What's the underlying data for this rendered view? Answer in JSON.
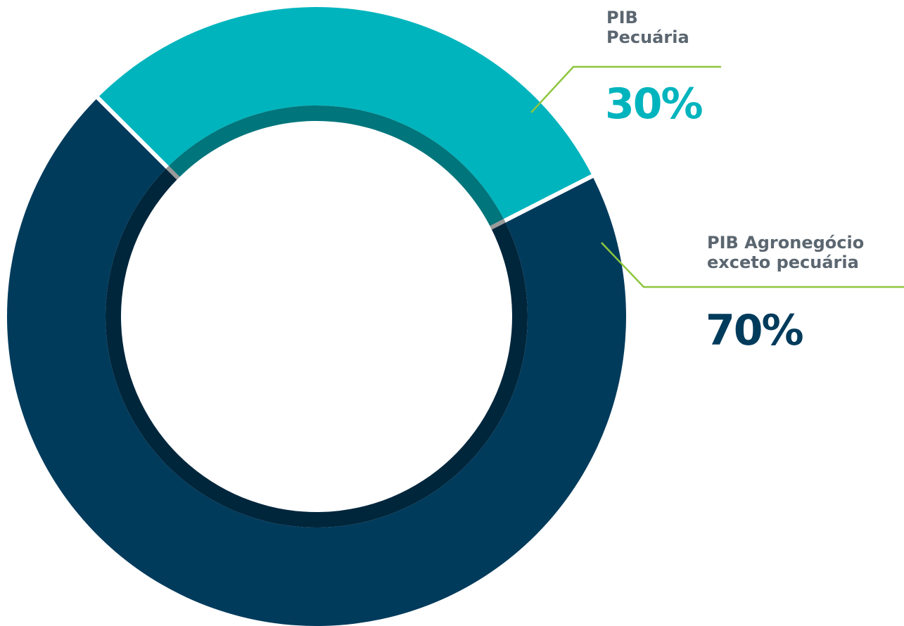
{
  "chart_data": {
    "type": "donut",
    "categories": [
      "PIB Pecuária",
      "PIB Agronegócio exceto pecuária"
    ],
    "values": [
      30,
      70
    ],
    "value_labels": [
      "30%",
      "70%"
    ],
    "colors": [
      "#00b4bd",
      "#003b5c"
    ]
  }
}
